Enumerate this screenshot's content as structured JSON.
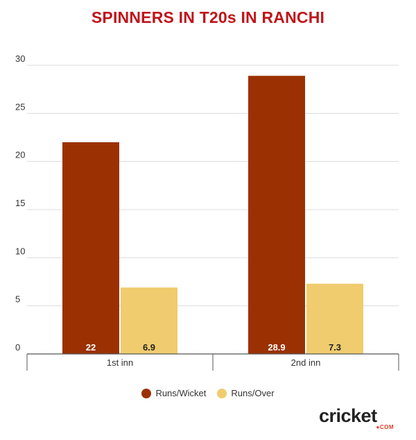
{
  "chart_data": {
    "type": "bar",
    "title": "SPINNERS IN T20s IN RANCHI",
    "categories": [
      "1st inn",
      "2nd inn"
    ],
    "series": [
      {
        "name": "Runs/Wicket",
        "color": "#9b3103",
        "label_color": "#ffffff",
        "values": [
          22,
          28.9
        ],
        "labels": [
          "22",
          "28.9"
        ]
      },
      {
        "name": "Runs/Over",
        "color": "#f0cc6e",
        "label_color": "#222222",
        "values": [
          6.9,
          7.3
        ],
        "labels": [
          "6.9",
          "7.3"
        ]
      }
    ],
    "ylim": [
      0,
      30
    ],
    "yticks": [
      0,
      5,
      10,
      15,
      20,
      25,
      30
    ],
    "grid": true,
    "legend": "bottom-center"
  },
  "brand": {
    "logo_word": "cricket",
    "logo_sub": "●COM"
  }
}
